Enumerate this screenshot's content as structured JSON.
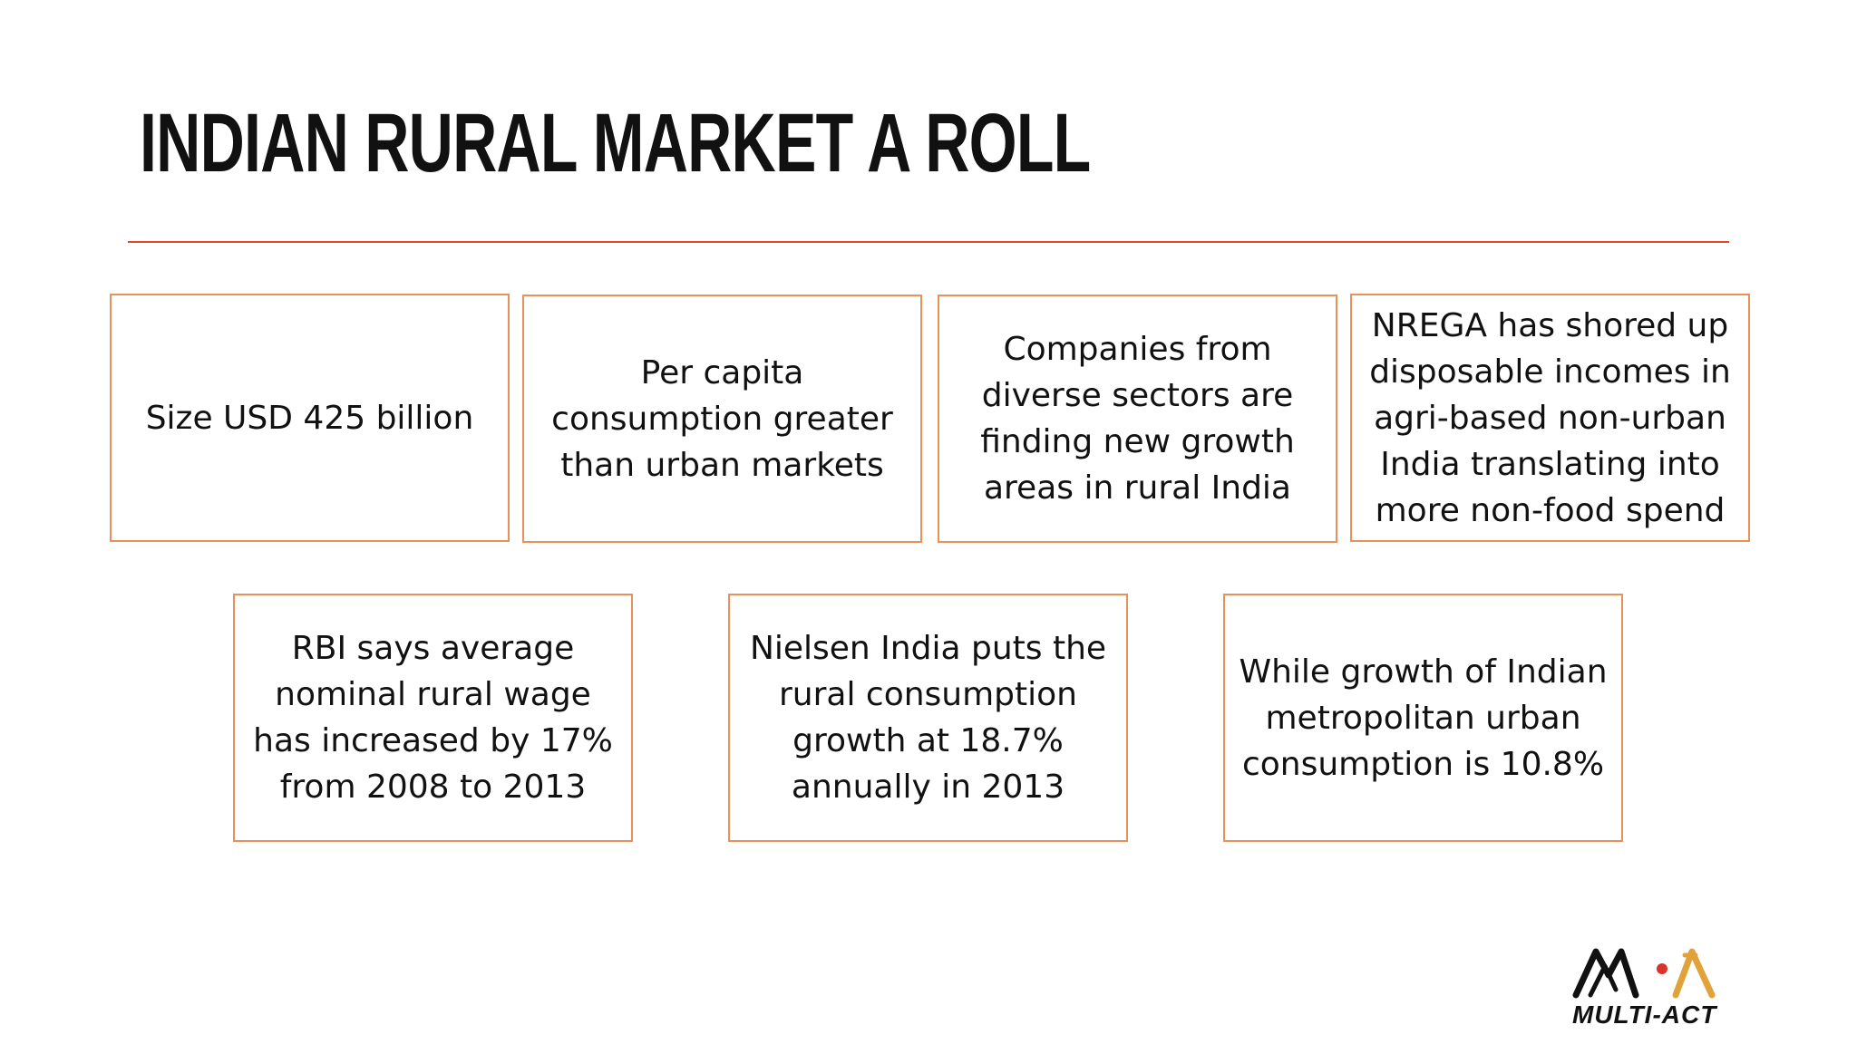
{
  "slide": {
    "title": "Indian Rural Market a Roll",
    "accent_color": "#e04a2c",
    "box_border_color": "#e8925a",
    "boxes_row1": [
      {
        "text": "Size USD 425 billion"
      },
      {
        "text": "Per capita consumption greater than urban markets"
      },
      {
        "text": "Companies from diverse sectors are finding new growth areas in rural India"
      },
      {
        "text": "NREGA has shored up disposable incomes in agri-based non-urban India translating into more non-food spend"
      }
    ],
    "boxes_row2": [
      {
        "text": "RBI says average nominal rural wage has increased by 17% from 2008 to 2013"
      },
      {
        "text": "Nielsen India puts the rural consumption growth at 18.7% annually in 2013"
      },
      {
        "text": "While growth of Indian metropolitan urban consumption is 10.8%"
      }
    ],
    "logo": {
      "text": "MULTI-ACT",
      "icon": "multi-act-logo-icon"
    }
  }
}
